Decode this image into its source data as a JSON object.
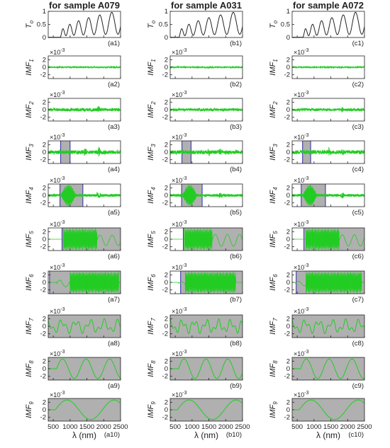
{
  "chart_data": {
    "type": "line",
    "layout": "10 rows x 3 columns of small line panels sharing the wavelength axis",
    "columns": [
      {
        "title": "for sample A079",
        "letter": "a"
      },
      {
        "title": "for sample A031",
        "letter": "b"
      },
      {
        "title": "for sample A072",
        "letter": "c"
      }
    ],
    "rows": [
      {
        "ylabel": "T",
        "ylabel_sub": "o",
        "ylim": [
          0,
          1
        ],
        "yticks": [
          "1",
          "0.5",
          "0"
        ],
        "multiplier": ""
      },
      {
        "ylabel": "IMF",
        "ylabel_sub": "1",
        "ylim": [
          -3,
          3
        ],
        "yticks": [
          "2",
          "0",
          "-2"
        ],
        "multiplier": "×10",
        "multiplier_exp": "-3"
      },
      {
        "ylabel": "IMF",
        "ylabel_sub": "2",
        "ylim": [
          -3,
          3
        ],
        "yticks": [
          "2",
          "0",
          "-2"
        ],
        "multiplier": "×10",
        "multiplier_exp": "-3"
      },
      {
        "ylabel": "IMF",
        "ylabel_sub": "3",
        "ylim": [
          -3,
          3
        ],
        "yticks": [
          "2",
          "0",
          "-2"
        ],
        "multiplier": "×10",
        "multiplier_exp": "-3"
      },
      {
        "ylabel": "IMF",
        "ylabel_sub": "4",
        "ylim": [
          -3,
          3
        ],
        "yticks": [
          "2",
          "0",
          "-2"
        ],
        "multiplier": "×10",
        "multiplier_exp": "-3"
      },
      {
        "ylabel": "IMF",
        "ylabel_sub": "5",
        "ylim": [
          -3,
          3
        ],
        "yticks": [
          "2",
          "0",
          "-2"
        ],
        "multiplier": "×10",
        "multiplier_exp": "-3"
      },
      {
        "ylabel": "IMF",
        "ylabel_sub": "6",
        "ylim": [
          -3,
          3
        ],
        "yticks": [
          "2",
          "0",
          "-2"
        ],
        "multiplier": "×10",
        "multiplier_exp": "-3"
      },
      {
        "ylabel": "IMF",
        "ylabel_sub": "7",
        "ylim": [
          -3,
          3
        ],
        "yticks": [
          "2",
          "0",
          "-2"
        ],
        "multiplier": "×10",
        "multiplier_exp": "-3"
      },
      {
        "ylabel": "IMF",
        "ylabel_sub": "8",
        "ylim": [
          -3,
          3
        ],
        "yticks": [
          "2",
          "0",
          "-2"
        ],
        "multiplier": "×10",
        "multiplier_exp": "-3"
      },
      {
        "ylabel": "IMF",
        "ylabel_sub": "9",
        "ylim": [
          -3,
          3
        ],
        "yticks": [
          "2",
          "0",
          "-2"
        ],
        "multiplier": "×10",
        "multiplier_exp": "-3"
      }
    ],
    "x": {
      "label": "λ (nm)",
      "range": [
        350,
        2500
      ],
      "ticks": [
        500,
        1000,
        1500,
        2000,
        2500
      ]
    },
    "panels": [
      [
        {
          "label": "(a1)",
          "curve": "transmission",
          "onset": 720
        },
        {
          "label": "(a2)",
          "curve": "noise",
          "amp": 0.15
        },
        {
          "label": "(a3)",
          "curve": "noise",
          "amp": 0.4,
          "bursts": [
            [
              1850,
              0.9
            ]
          ]
        },
        {
          "label": "(a4)",
          "curve": "noise",
          "amp": 0.5,
          "bursts": [
            [
              1450,
              1.2
            ],
            [
              1850,
              1.3
            ]
          ],
          "gray": [
            [
              720,
              1000
            ]
          ]
        },
        {
          "label": "(a5)",
          "curve": "burst",
          "amp": 2.8,
          "center": 950,
          "halfwidth": 230,
          "gray": [
            [
              700,
              1380
            ]
          ]
        },
        {
          "label": "(a6)",
          "curve": "fringes",
          "amp": 2.6,
          "start": 800,
          "end": 1800,
          "wave": [
            1800,
            2500,
            1.4
          ],
          "gray": [
            [
              760,
              2500
            ]
          ]
        },
        {
          "label": "(a7)",
          "curve": "fringes",
          "amp": 2.6,
          "start": 1000,
          "end": 2450,
          "wave": [
            600,
            1000,
            0.9
          ],
          "gray": [
            [
              390,
              2500
            ]
          ]
        },
        {
          "label": "(a8)",
          "curve": "wave",
          "amp": 2.0,
          "start": 650,
          "period": 420,
          "gray": [
            [
              350,
              2500
            ]
          ]
        },
        {
          "label": "(a9)",
          "curve": "wave",
          "amp": 2.6,
          "start": 600,
          "period": 700,
          "gray": [
            [
              350,
              2500
            ]
          ]
        },
        {
          "label": "(a10)",
          "curve": "wave",
          "amp": 2.6,
          "start": 560,
          "period": 1400,
          "gray": [
            [
              350,
              2500
            ]
          ]
        }
      ],
      [
        {
          "label": "(b1)",
          "curve": "transmission",
          "onset": 620
        },
        {
          "label": "(b2)",
          "curve": "noise",
          "amp": 0.15
        },
        {
          "label": "(b3)",
          "curve": "noise",
          "amp": 0.35
        },
        {
          "label": "(b4)",
          "curve": "noise",
          "amp": 0.5,
          "bursts": [
            [
              1500,
              1.0
            ],
            [
              1850,
              1.0
            ]
          ],
          "gray": [
            [
              700,
              970
            ]
          ]
        },
        {
          "label": "(b5)",
          "curve": "burst",
          "amp": 2.8,
          "center": 930,
          "halfwidth": 220,
          "gray": [
            [
              690,
              1300
            ]
          ]
        },
        {
          "label": "(b6)",
          "curve": "fringes",
          "amp": 2.6,
          "start": 780,
          "end": 1600,
          "wave": [
            1600,
            2500,
            1.6
          ],
          "gray": [
            [
              740,
              2500
            ]
          ]
        },
        {
          "label": "(b7)",
          "curve": "fringes",
          "amp": 2.6,
          "start": 800,
          "end": 2300,
          "wave": [
            600,
            800,
            0.5
          ],
          "gray": [
            [
              660,
              2500
            ]
          ]
        },
        {
          "label": "(b8)",
          "curve": "wave",
          "amp": 2.0,
          "start": 620,
          "period": 360,
          "gray": [
            [
              350,
              2500
            ]
          ]
        },
        {
          "label": "(b9)",
          "curve": "wave",
          "amp": 2.6,
          "start": 600,
          "period": 650,
          "gray": [
            [
              350,
              2500
            ]
          ]
        },
        {
          "label": "(b10)",
          "curve": "wave",
          "amp": 2.6,
          "start": 560,
          "period": 1400,
          "gray": [
            [
              350,
              2500
            ]
          ]
        }
      ],
      [
        {
          "label": "(c1)",
          "curve": "transmission",
          "onset": 680
        },
        {
          "label": "(c2)",
          "curve": "noise",
          "amp": 0.15
        },
        {
          "label": "(c3)",
          "curve": "noise",
          "amp": 0.35,
          "bursts": [
            [
              1850,
              0.8
            ]
          ]
        },
        {
          "label": "(c4)",
          "curve": "noise",
          "amp": 0.5,
          "bursts": [
            [
              1450,
              1.0
            ],
            [
              1850,
              1.1
            ]
          ],
          "gray": [
            [
              660,
              900
            ]
          ]
        },
        {
          "label": "(c5)",
          "curve": "burst",
          "amp": 2.8,
          "center": 880,
          "halfwidth": 210,
          "gray": [
            [
              620,
              1340
            ]
          ]
        },
        {
          "label": "(c6)",
          "curve": "fringes",
          "amp": 2.6,
          "start": 760,
          "end": 1750,
          "wave": [
            1750,
            2500,
            1.5
          ],
          "gray": [
            [
              700,
              2500
            ]
          ]
        },
        {
          "label": "(c7)",
          "curve": "fringes",
          "amp": 2.6,
          "start": 760,
          "end": 2420,
          "wave": [
            450,
            760,
            0.6
          ],
          "gray": [
            [
              470,
              2500
            ]
          ]
        },
        {
          "label": "(c8)",
          "curve": "wave",
          "amp": 2.0,
          "start": 640,
          "period": 400,
          "gray": [
            [
              350,
              2500
            ]
          ]
        },
        {
          "label": "(c9)",
          "curve": "wave",
          "amp": 2.6,
          "start": 600,
          "period": 680,
          "gray": [
            [
              350,
              2500
            ]
          ]
        },
        {
          "label": "(c10)",
          "curve": "wave",
          "amp": 2.6,
          "start": 560,
          "period": 1400,
          "gray": [
            [
              350,
              2500
            ]
          ]
        }
      ]
    ],
    "colors": {
      "imf_line": "#22cc22",
      "transmission_line": "#222222",
      "shade": "#b0b0b0",
      "boundary": "#2a2aa8",
      "frame": "#222222"
    }
  }
}
